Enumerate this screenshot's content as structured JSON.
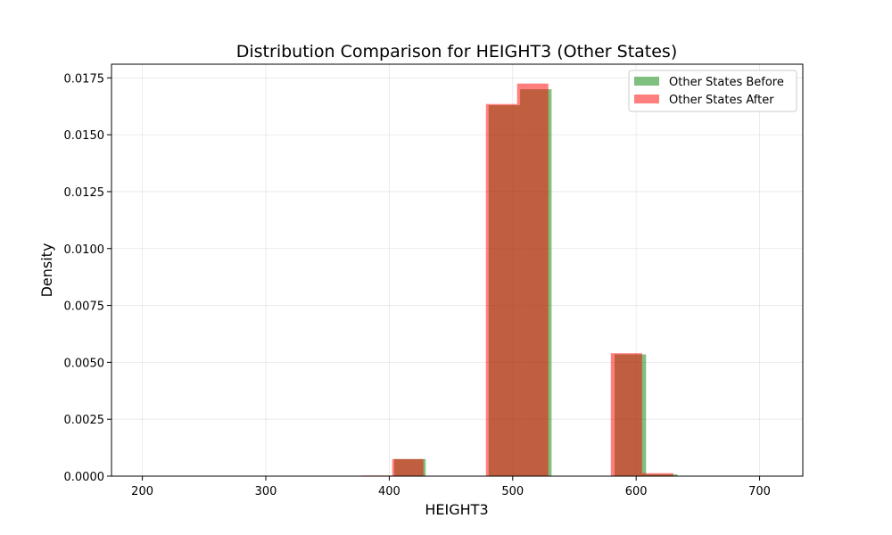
{
  "chart_data": {
    "type": "histogram",
    "title": "Distribution Comparison for HEIGHT3 (Other States)",
    "xlabel": "HEIGHT3",
    "ylabel": "Density",
    "xlim": [
      175,
      735
    ],
    "ylim": [
      0,
      0.0181
    ],
    "xticks": [
      200,
      300,
      400,
      500,
      600,
      700
    ],
    "yticks": [
      0.0,
      0.0025,
      0.005,
      0.0075,
      0.01,
      0.0125,
      0.015,
      0.0175
    ],
    "ytick_labels": [
      "0.0000",
      "0.0025",
      "0.0050",
      "0.0075",
      "0.0100",
      "0.0125",
      "0.0150",
      "0.0175"
    ],
    "grid": true,
    "legend_position": "top-right",
    "series": [
      {
        "name": "Other States Before",
        "color": "#008000",
        "alpha": 0.5,
        "bins": [
          {
            "x0": 200.0,
            "x1": 225.5,
            "value": 0.0
          },
          {
            "x0": 225.5,
            "x1": 251.0,
            "value": 0.0
          },
          {
            "x0": 251.0,
            "x1": 276.5,
            "value": 0.0
          },
          {
            "x0": 276.5,
            "x1": 302.0,
            "value": 0.0
          },
          {
            "x0": 302.0,
            "x1": 327.5,
            "value": 0.0
          },
          {
            "x0": 327.5,
            "x1": 353.0,
            "value": 0.0
          },
          {
            "x0": 353.0,
            "x1": 378.5,
            "value": 0.0
          },
          {
            "x0": 378.5,
            "x1": 404.0,
            "value": 0.0
          },
          {
            "x0": 404.0,
            "x1": 429.5,
            "value": 0.00075
          },
          {
            "x0": 429.5,
            "x1": 455.0,
            "value": 0.0
          },
          {
            "x0": 455.0,
            "x1": 480.5,
            "value": 0.0
          },
          {
            "x0": 480.5,
            "x1": 506.0,
            "value": 0.0163
          },
          {
            "x0": 506.0,
            "x1": 531.5,
            "value": 0.017
          },
          {
            "x0": 531.5,
            "x1": 557.0,
            "value": 0.0
          },
          {
            "x0": 557.0,
            "x1": 582.5,
            "value": 0.0
          },
          {
            "x0": 582.5,
            "x1": 608.0,
            "value": 0.00535
          },
          {
            "x0": 608.0,
            "x1": 633.5,
            "value": 8e-05
          },
          {
            "x0": 633.5,
            "x1": 659.0,
            "value": 0.0
          },
          {
            "x0": 659.0,
            "x1": 684.5,
            "value": 0.0
          },
          {
            "x0": 684.5,
            "x1": 710.0,
            "value": 0.0
          }
        ]
      },
      {
        "name": "Other States After",
        "color": "#ff0000",
        "alpha": 0.5,
        "bins": [
          {
            "x0": 200.0,
            "x1": 225.3,
            "value": 0.0
          },
          {
            "x0": 225.3,
            "x1": 250.6,
            "value": 0.0
          },
          {
            "x0": 250.6,
            "x1": 275.9,
            "value": 0.0
          },
          {
            "x0": 275.9,
            "x1": 301.2,
            "value": 0.0
          },
          {
            "x0": 301.2,
            "x1": 326.5,
            "value": 0.0
          },
          {
            "x0": 326.5,
            "x1": 351.8,
            "value": 0.0
          },
          {
            "x0": 351.8,
            "x1": 377.1,
            "value": 0.0
          },
          {
            "x0": 377.1,
            "x1": 402.4,
            "value": 3e-05
          },
          {
            "x0": 402.4,
            "x1": 427.7,
            "value": 0.00075
          },
          {
            "x0": 427.7,
            "x1": 453.0,
            "value": 0.0
          },
          {
            "x0": 453.0,
            "x1": 478.3,
            "value": 0.0
          },
          {
            "x0": 478.3,
            "x1": 503.6,
            "value": 0.01635
          },
          {
            "x0": 503.6,
            "x1": 528.9,
            "value": 0.01725
          },
          {
            "x0": 528.9,
            "x1": 554.2,
            "value": 0.0
          },
          {
            "x0": 554.2,
            "x1": 579.5,
            "value": 0.0
          },
          {
            "x0": 579.5,
            "x1": 604.8,
            "value": 0.0054
          },
          {
            "x0": 604.8,
            "x1": 630.1,
            "value": 0.00013
          },
          {
            "x0": 630.1,
            "x1": 655.4,
            "value": 0.0
          },
          {
            "x0": 655.4,
            "x1": 680.7,
            "value": 0.0
          },
          {
            "x0": 680.7,
            "x1": 706.0,
            "value": 0.0
          }
        ]
      }
    ]
  }
}
